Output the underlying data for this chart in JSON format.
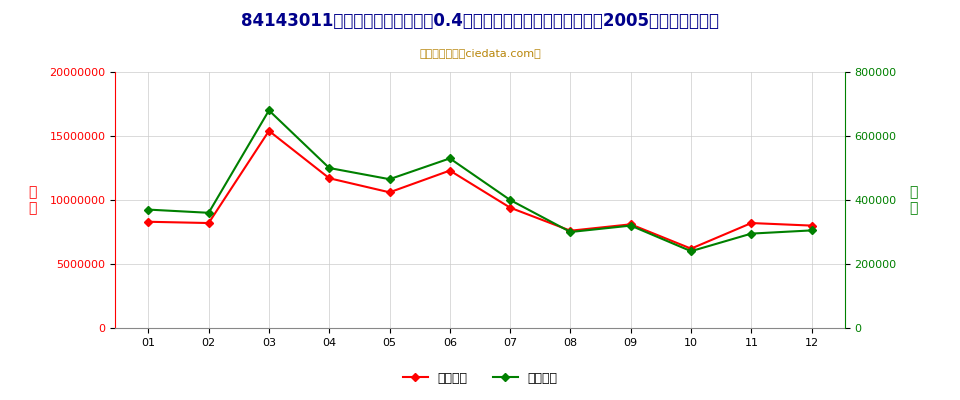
{
  "title": "84143011电动机额定功率不超过0.4千瓦的冷藏箱或冷冻箱用压缩机2005年进口月度走势",
  "subtitle": "进出口服务网（ciedata.com）",
  "months": [
    "01",
    "02",
    "03",
    "04",
    "05",
    "06",
    "07",
    "08",
    "09",
    "10",
    "11",
    "12"
  ],
  "import_usd": [
    8300000,
    8200000,
    15400000,
    11700000,
    10600000,
    12300000,
    9400000,
    7600000,
    8100000,
    6200000,
    8200000,
    8000000
  ],
  "import_qty": [
    370000,
    360000,
    680000,
    500000,
    465000,
    530000,
    400000,
    300000,
    320000,
    240000,
    295000,
    305000
  ],
  "left_ylabel": "金\n额",
  "right_ylabel": "数\n量",
  "left_ylim": [
    0,
    20000000
  ],
  "right_ylim": [
    0,
    800000
  ],
  "left_yticks": [
    0,
    5000000,
    10000000,
    15000000,
    20000000
  ],
  "right_yticks": [
    0,
    200000,
    400000,
    600000,
    800000
  ],
  "line1_color": "#FF0000",
  "line2_color": "#008000",
  "line1_label": "进口美元",
  "line2_label": "进口数量",
  "title_color": "#00008B",
  "subtitle_color": "#B8860B",
  "left_axis_color": "#FF0000",
  "right_axis_color": "#008000",
  "bg_color": "#FFFFFF",
  "grid_color": "#CCCCCC",
  "title_fontsize": 12,
  "subtitle_fontsize": 8,
  "tick_fontsize": 8,
  "legend_fontsize": 9
}
